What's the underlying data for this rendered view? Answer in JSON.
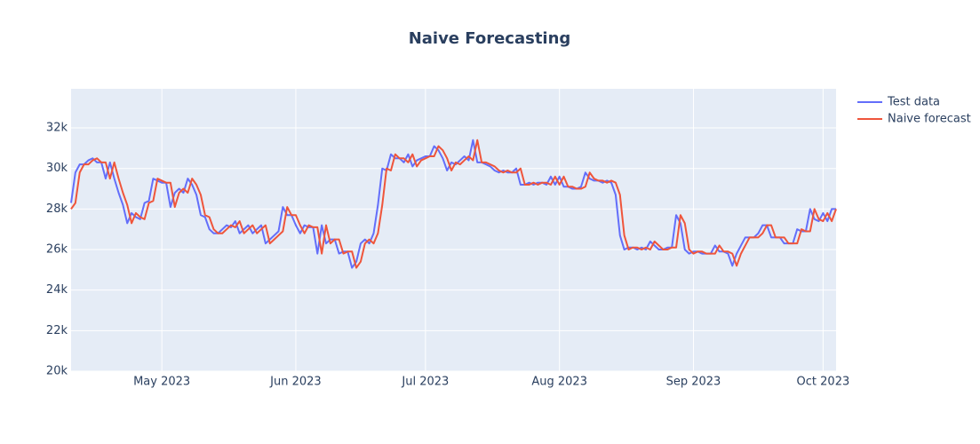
{
  "chart_data": {
    "type": "line",
    "title": "Naive Forecasting",
    "x": [
      -21,
      -20,
      -19,
      -18,
      -17,
      -16,
      -15,
      -14,
      -13,
      -12,
      -11,
      -10,
      -9,
      -8,
      -7,
      -6,
      -5,
      -4,
      -3,
      -2,
      -1,
      0,
      1,
      2,
      3,
      4,
      5,
      6,
      7,
      8,
      9,
      10,
      11,
      12,
      13,
      14,
      15,
      16,
      17,
      18,
      19,
      20,
      21,
      22,
      23,
      24,
      25,
      26,
      27,
      28,
      29,
      30,
      31,
      32,
      33,
      34,
      35,
      36,
      37,
      38,
      39,
      40,
      41,
      42,
      43,
      44,
      45,
      46,
      47,
      48,
      49,
      50,
      51,
      52,
      53,
      54,
      55,
      56,
      57,
      58,
      59,
      60,
      61,
      62,
      63,
      64,
      65,
      66,
      67,
      68,
      69,
      70,
      71,
      72,
      73,
      74,
      75,
      76,
      77,
      78,
      79,
      80,
      81,
      82,
      83,
      84,
      85,
      86,
      87,
      88,
      89,
      90,
      91,
      92,
      93,
      94,
      95,
      96,
      97,
      98,
      99,
      100,
      101,
      102,
      103,
      104,
      105,
      106,
      107,
      108,
      109,
      110,
      111,
      112,
      113,
      114,
      115,
      116,
      117,
      118,
      119,
      120,
      121,
      122,
      123,
      124,
      125,
      126,
      127,
      128,
      129,
      130,
      131,
      132,
      133,
      134,
      135,
      136,
      137,
      138,
      139,
      140,
      141,
      142,
      143,
      144,
      145,
      146,
      147,
      148,
      149,
      150,
      151,
      152,
      153,
      154,
      155,
      156
    ],
    "series": [
      {
        "name": "Test data",
        "color": "#636efa",
        "values": [
          28300,
          29800,
          30200,
          30200,
          30400,
          30500,
          30300,
          30300,
          29500,
          30300,
          29500,
          28800,
          28200,
          27300,
          27800,
          27600,
          27500,
          28300,
          28400,
          29500,
          29400,
          29300,
          29300,
          28100,
          28800,
          29000,
          28800,
          29500,
          29200,
          28700,
          27700,
          27600,
          27000,
          26800,
          26800,
          27000,
          27200,
          27100,
          27400,
          26800,
          27000,
          27200,
          26800,
          27000,
          27200,
          26300,
          26500,
          26700,
          26900,
          28100,
          27700,
          27700,
          27200,
          26800,
          27200,
          27100,
          27100,
          25800,
          27200,
          26300,
          26500,
          26500,
          25800,
          25900,
          25900,
          25100,
          25400,
          26300,
          26500,
          26300,
          26800,
          28200,
          30000,
          29900,
          30700,
          30500,
          30500,
          30300,
          30700,
          30100,
          30400,
          30500,
          30600,
          30600,
          31100,
          30900,
          30500,
          29900,
          30300,
          30200,
          30400,
          30600,
          30400,
          31400,
          30300,
          30300,
          30200,
          30100,
          29900,
          29800,
          29900,
          29800,
          29800,
          30000,
          29200,
          29200,
          29300,
          29200,
          29300,
          29300,
          29200,
          29600,
          29200,
          29600,
          29100,
          29100,
          29000,
          29000,
          29100,
          29800,
          29500,
          29400,
          29400,
          29300,
          29400,
          29300,
          28700,
          26700,
          26000,
          26100,
          26100,
          26000,
          26100,
          26000,
          26400,
          26200,
          26000,
          26000,
          26100,
          26100,
          27700,
          27300,
          26000,
          25800,
          25900,
          25900,
          25800,
          25800,
          25800,
          26200,
          25900,
          25900,
          25800,
          25200,
          25800,
          26200,
          26600,
          26600,
          26600,
          26800,
          27200,
          27200,
          26600,
          26600,
          26600,
          26300,
          26300,
          26300,
          27000,
          26900,
          26900,
          28000,
          27500,
          27400,
          27800,
          27400,
          28000,
          28000
        ]
      },
      {
        "name": "Naive forecast",
        "color": "#ef553b",
        "values": [
          28000,
          28300,
          29800,
          30200,
          30200,
          30400,
          30500,
          30300,
          30300,
          29500,
          30300,
          29500,
          28800,
          28200,
          27300,
          27800,
          27600,
          27500,
          28300,
          28400,
          29500,
          29400,
          29300,
          29300,
          28100,
          28800,
          29000,
          28800,
          29500,
          29200,
          28700,
          27700,
          27600,
          27000,
          26800,
          26800,
          27000,
          27200,
          27100,
          27400,
          26800,
          27000,
          27200,
          26800,
          27000,
          27200,
          26300,
          26500,
          26700,
          26900,
          28100,
          27700,
          27700,
          27200,
          26800,
          27200,
          27100,
          27100,
          25800,
          27200,
          26300,
          26500,
          26500,
          25800,
          25900,
          25900,
          25100,
          25400,
          26300,
          26500,
          26300,
          26800,
          28200,
          30000,
          29900,
          30700,
          30500,
          30500,
          30300,
          30700,
          30100,
          30400,
          30500,
          30600,
          30600,
          31100,
          30900,
          30500,
          29900,
          30300,
          30200,
          30400,
          30600,
          30400,
          31400,
          30300,
          30300,
          30200,
          30100,
          29900,
          29800,
          29900,
          29800,
          29800,
          30000,
          29200,
          29200,
          29300,
          29200,
          29300,
          29300,
          29200,
          29600,
          29200,
          29600,
          29100,
          29100,
          29000,
          29000,
          29100,
          29800,
          29500,
          29400,
          29400,
          29300,
          29400,
          29300,
          28700,
          26700,
          26000,
          26100,
          26100,
          26000,
          26100,
          26000,
          26400,
          26200,
          26000,
          26000,
          26100,
          26100,
          27700,
          27300,
          26000,
          25800,
          25900,
          25900,
          25800,
          25800,
          25800,
          26200,
          25900,
          25900,
          25800,
          25200,
          25800,
          26200,
          26600,
          26600,
          26600,
          26800,
          27200,
          27200,
          26600,
          26600,
          26600,
          26300,
          26300,
          26300,
          27000,
          26900,
          26900,
          28000,
          27500,
          27400,
          27800,
          27400,
          28000
        ]
      }
    ],
    "xlim": [
      -21,
      156
    ],
    "xticks": [
      {
        "value": 0,
        "label": "May 2023"
      },
      {
        "value": 31,
        "label": "Jun 2023"
      },
      {
        "value": 61,
        "label": "Jul 2023"
      },
      {
        "value": 92,
        "label": "Aug 2023"
      },
      {
        "value": 123,
        "label": "Sep 2023"
      },
      {
        "value": 153,
        "label": "Oct 2023"
      }
    ],
    "ylim": [
      20000,
      33930
    ],
    "yticks": [
      {
        "value": 20000,
        "label": "20k"
      },
      {
        "value": 22000,
        "label": "22k"
      },
      {
        "value": 24000,
        "label": "24k"
      },
      {
        "value": 26000,
        "label": "26k"
      },
      {
        "value": 28000,
        "label": "28k"
      },
      {
        "value": 30000,
        "label": "30k"
      },
      {
        "value": 32000,
        "label": "32k"
      }
    ],
    "grid": true
  }
}
